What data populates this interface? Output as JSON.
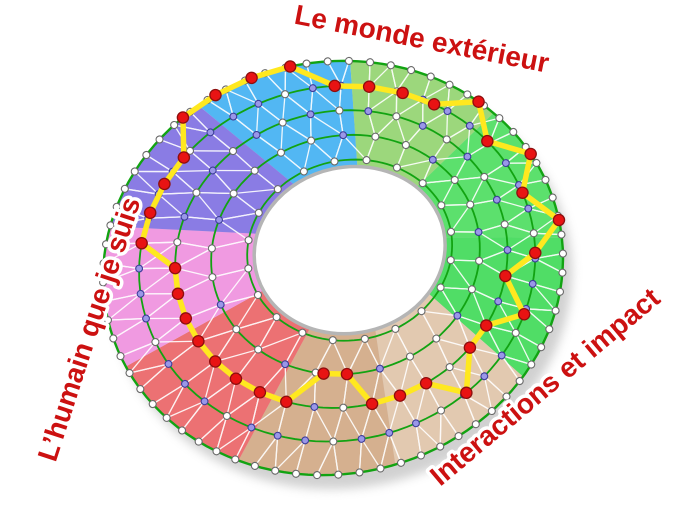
{
  "labels": {
    "top": "Le monde extérieur",
    "left": "L’humain que je suis",
    "bottom_right": "Interactions et impact",
    "text_color": "#cc1111",
    "outline_color": "#ffffff"
  },
  "chart_data": {
    "type": "radial-wheel",
    "rings": 5,
    "spokes": 36,
    "categories": [
      {
        "label": "Le monde extérieur",
        "sectors": [
          "purple",
          "blue",
          "light-green"
        ]
      },
      {
        "label": "Interactions et impact",
        "sectors": [
          "green",
          "green-2",
          "tan-light"
        ]
      },
      {
        "label": "L’humain que je suis",
        "sectors": [
          "tan-dark",
          "red",
          "pink"
        ]
      }
    ],
    "sectors": [
      {
        "name": "blue",
        "color": "#52b7f3",
        "start": -115,
        "end": -75,
        "values": [
          5,
          5,
          5,
          4
        ]
      },
      {
        "name": "light-green",
        "color": "#9cd77c",
        "start": -75,
        "end": -35,
        "values": [
          4,
          4,
          4,
          5
        ]
      },
      {
        "name": "green",
        "color": "#5ce06d",
        "start": -35,
        "end": 5,
        "values": [
          4,
          5,
          4,
          5
        ]
      },
      {
        "name": "green-2",
        "color": "#50dd66",
        "start": 5,
        "end": 45,
        "values": [
          4,
          3,
          4,
          3
        ]
      },
      {
        "name": "tan-light",
        "color": "#e2c9b0",
        "start": 45,
        "end": 85,
        "values": [
          3,
          4,
          3,
          3
        ]
      },
      {
        "name": "tan-dark",
        "color": "#d5b08f",
        "start": 85,
        "end": 125,
        "values": [
          3,
          2,
          2,
          3
        ]
      },
      {
        "name": "red",
        "color": "#ec7173",
        "start": 125,
        "end": 165,
        "values": [
          3,
          3,
          3,
          3
        ]
      },
      {
        "name": "pink",
        "color": "#f09ae1",
        "start": 165,
        "end": 205,
        "values": [
          3,
          3,
          3,
          4
        ]
      },
      {
        "name": "purple",
        "color": "#8a7ce4",
        "start": 205,
        "end": 245,
        "values": [
          4,
          4,
          4,
          5
        ]
      }
    ],
    "ring_nodes": [
      {
        "count": 20,
        "colors": "white"
      },
      {
        "count": 26,
        "colors": [
          "white",
          "white",
          "purple"
        ]
      },
      {
        "count": 36,
        "colors": [
          "purple",
          "white",
          "purple",
          "white"
        ]
      },
      {
        "count": 44,
        "colors": [
          "purple",
          "purple",
          "white",
          "purple"
        ]
      },
      {
        "count": 68,
        "colors": "white"
      }
    ],
    "node_colors": {
      "level": "#e81313",
      "level_stroke": "#8e0e0e",
      "grid_white": "#ffffff",
      "grid_purple": "#9a97e8",
      "grid_white_stroke": "#6a6a6a",
      "grid_purple_stroke": "#3d3d99"
    },
    "path_color": "#ffe81f",
    "ring_line_color": "#12a312",
    "mesh_color": "#ffffff",
    "hole_rim_color": "#b5b5b5",
    "shadow_color": "#9a9a9a"
  }
}
